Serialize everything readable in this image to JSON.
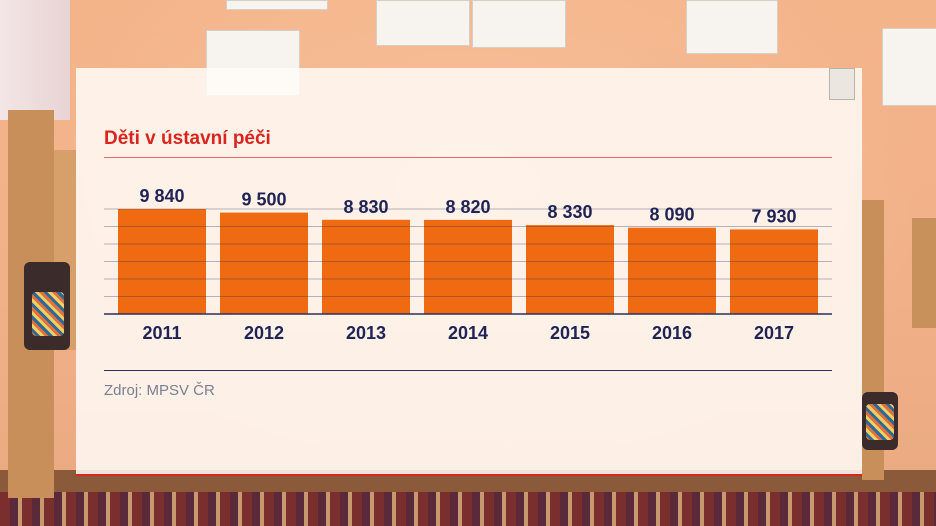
{
  "chart_data": {
    "type": "bar",
    "title": "Děti v ústavní péči",
    "categories": [
      "2011",
      "2012",
      "2013",
      "2014",
      "2015",
      "2016",
      "2017"
    ],
    "values": [
      9840,
      9500,
      8830,
      8820,
      8330,
      8090,
      7930
    ],
    "value_labels": [
      "9 840",
      "9 500",
      "8 830",
      "8 820",
      "8 330",
      "8 090",
      "7 930"
    ],
    "source": "Zdroj: MPSV ČR",
    "grid": true,
    "bar_color": "#ef6a10",
    "gridline_color": "#2b2f5e",
    "label_color": "#1f2356",
    "accent_color": "#d9251d"
  }
}
